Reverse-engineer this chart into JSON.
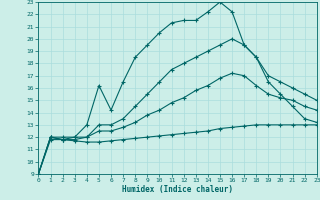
{
  "xlabel": "Humidex (Indice chaleur)",
  "bg_color": "#cceee8",
  "line_color": "#006666",
  "grid_color": "#aadddd",
  "xlim": [
    0,
    23
  ],
  "ylim": [
    9,
    23
  ],
  "xticks": [
    0,
    1,
    2,
    3,
    4,
    5,
    6,
    7,
    8,
    9,
    10,
    11,
    12,
    13,
    14,
    15,
    16,
    17,
    18,
    19,
    20,
    21,
    22,
    23
  ],
  "yticks": [
    9,
    10,
    11,
    12,
    13,
    14,
    15,
    16,
    17,
    18,
    19,
    20,
    21,
    22,
    23
  ],
  "curve_upper": {
    "x": [
      0,
      1,
      2,
      3,
      4,
      5,
      6,
      7,
      8,
      9,
      10,
      11,
      12,
      13,
      14,
      15,
      16,
      17,
      18,
      19,
      20,
      21,
      22,
      23
    ],
    "y": [
      9,
      12,
      12,
      12,
      13,
      16.2,
      14.2,
      16.5,
      18.5,
      19.5,
      20.5,
      21.3,
      21.5,
      21.5,
      22.2,
      23,
      22.2,
      19.5,
      18.5,
      16.5,
      15.5,
      14.5,
      13.5,
      13.2
    ]
  },
  "curve_lower": {
    "x": [
      0,
      1,
      2,
      3,
      4,
      5,
      6,
      7,
      8,
      9,
      10,
      11,
      12,
      13,
      14,
      15,
      16,
      17,
      18,
      19,
      20,
      21,
      22,
      23
    ],
    "y": [
      9,
      11.8,
      11.8,
      11.7,
      11.6,
      11.6,
      11.7,
      11.8,
      11.9,
      12.0,
      12.1,
      12.2,
      12.3,
      12.4,
      12.5,
      12.7,
      12.8,
      12.9,
      13.0,
      13.0,
      13.0,
      13.0,
      13.0,
      13.0
    ]
  },
  "curve_mid1": {
    "x": [
      0,
      1,
      2,
      3,
      4,
      5,
      6,
      7,
      8,
      9,
      10,
      11,
      12,
      13,
      14,
      15,
      16,
      17,
      18,
      19,
      20,
      21,
      22,
      23
    ],
    "y": [
      9,
      12,
      11.8,
      11.8,
      12,
      13,
      13,
      13.5,
      14.5,
      15.5,
      16.5,
      17.5,
      18,
      18.5,
      19,
      19.5,
      20,
      19.5,
      18.5,
      17,
      16.5,
      16,
      15.5,
      15
    ]
  },
  "curve_mid2": {
    "x": [
      0,
      1,
      2,
      3,
      4,
      5,
      6,
      7,
      8,
      9,
      10,
      11,
      12,
      13,
      14,
      15,
      16,
      17,
      18,
      19,
      20,
      21,
      22,
      23
    ],
    "y": [
      9,
      12,
      11.8,
      12,
      12,
      12.5,
      12.5,
      12.8,
      13.2,
      13.8,
      14.2,
      14.8,
      15.2,
      15.8,
      16.2,
      16.8,
      17.2,
      17,
      16.2,
      15.5,
      15.2,
      15,
      14.5,
      14.2
    ]
  }
}
